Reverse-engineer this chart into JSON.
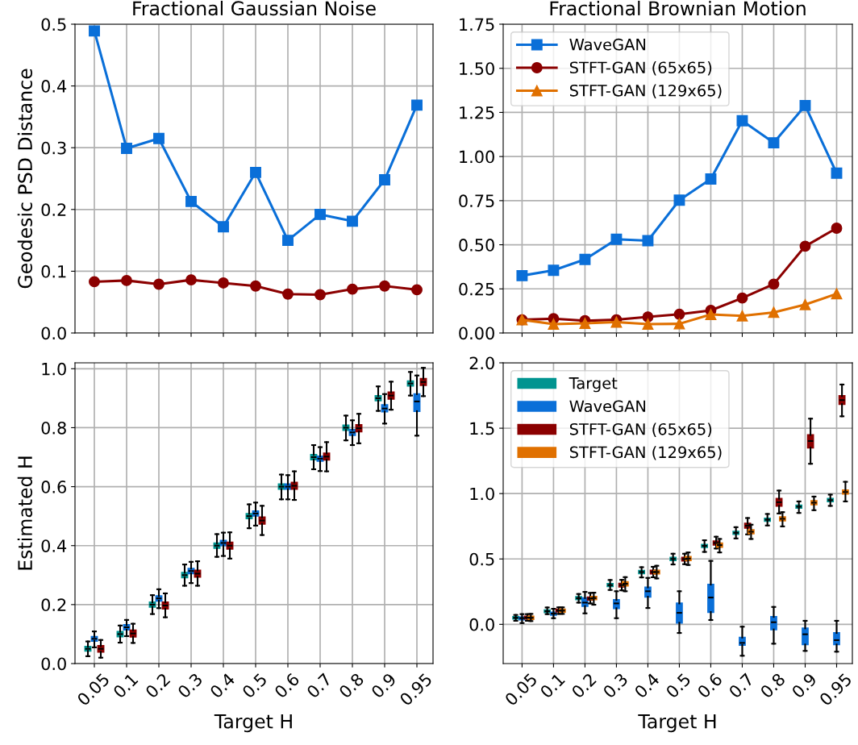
{
  "chart_data": [
    {
      "type": "line",
      "title": "Fractional Gaussian Noise",
      "ylabel": "Geodesic PSD Distance",
      "categories": [
        "0.05",
        "0.1",
        "0.2",
        "0.3",
        "0.4",
        "0.5",
        "0.6",
        "0.7",
        "0.8",
        "0.9",
        "0.95"
      ],
      "ylim": [
        0,
        0.5
      ],
      "yticks": [
        {
          "value": 0,
          "label": "0.0"
        },
        {
          "value": 0.1,
          "label": "0.1"
        },
        {
          "value": 0.2,
          "label": "0.2"
        },
        {
          "value": 0.3,
          "label": "0.3"
        },
        {
          "value": 0.4,
          "label": "0.4"
        },
        {
          "value": 0.5,
          "label": "0.5"
        }
      ],
      "grid": true,
      "tick_labels": "y",
      "series": [
        {
          "color": "#0a6fd8",
          "marker": "square",
          "values": [
            0.489,
            0.299,
            0.315,
            0.213,
            0.172,
            0.26,
            0.15,
            0.192,
            0.181,
            0.248,
            0.369
          ]
        },
        {
          "color": "#8b0000",
          "marker": "circle",
          "values": [
            0.083,
            0.085,
            0.079,
            0.086,
            0.081,
            0.076,
            0.063,
            0.062,
            0.071,
            0.076,
            0.07
          ]
        }
      ]
    },
    {
      "type": "line",
      "title": "Fractional Brownian Motion",
      "categories": [
        "0.05",
        "0.1",
        "0.2",
        "0.3",
        "0.4",
        "0.5",
        "0.6",
        "0.7",
        "0.8",
        "0.9",
        "0.95"
      ],
      "ylim": [
        0,
        1.75
      ],
      "yticks": [
        {
          "value": 0,
          "label": "0.00"
        },
        {
          "value": 0.25,
          "label": "0.25"
        },
        {
          "value": 0.5,
          "label": "0.50"
        },
        {
          "value": 0.75,
          "label": "0.75"
        },
        {
          "value": 1.0,
          "label": "1.00"
        },
        {
          "value": 1.25,
          "label": "1.25"
        },
        {
          "value": 1.5,
          "label": "1.50"
        },
        {
          "value": 1.75,
          "label": "1.75"
        }
      ],
      "grid": true,
      "tick_labels": "y",
      "legend": "top left",
      "series": [
        {
          "name": "WaveGAN",
          "color": "#0a6fd8",
          "marker": "square",
          "values": [
            0.325,
            0.355,
            0.417,
            0.531,
            0.523,
            0.753,
            0.873,
            1.203,
            1.078,
            1.289,
            0.906
          ]
        },
        {
          "name": "STFT-GAN (65x65)",
          "color": "#8b0000",
          "marker": "circle",
          "values": [
            0.075,
            0.081,
            0.07,
            0.075,
            0.091,
            0.106,
            0.128,
            0.198,
            0.277,
            0.492,
            0.594
          ]
        },
        {
          "name": "STFT-GAN (129x65)",
          "color": "#e07000",
          "marker": "triangle",
          "values": [
            0.075,
            0.05,
            0.055,
            0.062,
            0.05,
            0.052,
            0.105,
            0.097,
            0.117,
            0.161,
            0.222
          ]
        }
      ]
    },
    {
      "type": "box",
      "xlabel": "Target H",
      "ylabel": "Estimated H",
      "categories": [
        "0.05",
        "0.1",
        "0.2",
        "0.3",
        "0.4",
        "0.5",
        "0.6",
        "0.7",
        "0.8",
        "0.9",
        "0.95"
      ],
      "ylim": [
        0,
        1.02
      ],
      "yticks": [
        {
          "value": 0,
          "label": "0.0"
        },
        {
          "value": 0.2,
          "label": "0.2"
        },
        {
          "value": 0.4,
          "label": "0.4"
        },
        {
          "value": 0.6,
          "label": "0.6"
        },
        {
          "value": 0.8,
          "label": "0.8"
        },
        {
          "value": 1.0,
          "label": "1.0"
        }
      ],
      "grid": true,
      "series": [
        {
          "color": "#009490",
          "boxes": [
            {
              "low": 0.025,
              "q1": 0.043,
              "median": 0.05,
              "q3": 0.057,
              "high": 0.075
            },
            {
              "low": 0.071,
              "q1": 0.092,
              "median": 0.1,
              "q3": 0.108,
              "high": 0.129
            },
            {
              "low": 0.168,
              "q1": 0.192,
              "median": 0.2,
              "q3": 0.208,
              "high": 0.232
            },
            {
              "low": 0.264,
              "q1": 0.292,
              "median": 0.3,
              "q3": 0.308,
              "high": 0.336
            },
            {
              "low": 0.362,
              "q1": 0.392,
              "median": 0.4,
              "q3": 0.408,
              "high": 0.439
            },
            {
              "low": 0.459,
              "q1": 0.492,
              "median": 0.5,
              "q3": 0.508,
              "high": 0.54
            },
            {
              "low": 0.557,
              "q1": 0.592,
              "median": 0.6,
              "q3": 0.608,
              "high": 0.641
            },
            {
              "low": 0.659,
              "q1": 0.692,
              "median": 0.7,
              "q3": 0.708,
              "high": 0.741
            },
            {
              "low": 0.757,
              "q1": 0.792,
              "median": 0.8,
              "q3": 0.808,
              "high": 0.841
            },
            {
              "low": 0.857,
              "q1": 0.892,
              "median": 0.9,
              "q3": 0.908,
              "high": 0.94
            },
            {
              "low": 0.909,
              "q1": 0.942,
              "median": 0.95,
              "q3": 0.958,
              "high": 0.989
            }
          ]
        },
        {
          "color": "#0a6fd8",
          "boxes": [
            {
              "low": 0.055,
              "q1": 0.077,
              "median": 0.084,
              "q3": 0.091,
              "high": 0.109
            },
            {
              "low": 0.093,
              "q1": 0.115,
              "median": 0.123,
              "q3": 0.131,
              "high": 0.148
            },
            {
              "low": 0.188,
              "q1": 0.213,
              "median": 0.221,
              "q3": 0.229,
              "high": 0.252
            },
            {
              "low": 0.273,
              "q1": 0.306,
              "median": 0.314,
              "q3": 0.322,
              "high": 0.345
            },
            {
              "low": 0.365,
              "q1": 0.401,
              "median": 0.409,
              "q3": 0.417,
              "high": 0.444
            },
            {
              "low": 0.468,
              "q1": 0.501,
              "median": 0.509,
              "q3": 0.517,
              "high": 0.546
            },
            {
              "low": 0.557,
              "q1": 0.592,
              "median": 0.6,
              "q3": 0.608,
              "high": 0.639
            },
            {
              "low": 0.653,
              "q1": 0.687,
              "median": 0.695,
              "q3": 0.703,
              "high": 0.734
            },
            {
              "low": 0.741,
              "q1": 0.775,
              "median": 0.784,
              "q3": 0.793,
              "high": 0.825
            },
            {
              "low": 0.814,
              "q1": 0.855,
              "median": 0.865,
              "q3": 0.877,
              "high": 0.914
            },
            {
              "low": 0.773,
              "q1": 0.856,
              "median": 0.889,
              "q3": 0.914,
              "high": 0.977
            }
          ]
        },
        {
          "color": "#8b0000",
          "boxes": [
            {
              "low": 0.02,
              "q1": 0.04,
              "median": 0.05,
              "q3": 0.06,
              "high": 0.08
            },
            {
              "low": 0.07,
              "q1": 0.091,
              "median": 0.102,
              "q3": 0.113,
              "high": 0.135
            },
            {
              "low": 0.157,
              "q1": 0.186,
              "median": 0.197,
              "q3": 0.208,
              "high": 0.238
            },
            {
              "low": 0.264,
              "q1": 0.294,
              "median": 0.305,
              "q3": 0.316,
              "high": 0.347
            },
            {
              "low": 0.356,
              "q1": 0.389,
              "median": 0.4,
              "q3": 0.411,
              "high": 0.445
            },
            {
              "low": 0.436,
              "q1": 0.474,
              "median": 0.485,
              "q3": 0.496,
              "high": 0.535
            },
            {
              "low": 0.555,
              "q1": 0.592,
              "median": 0.603,
              "q3": 0.614,
              "high": 0.652
            },
            {
              "low": 0.652,
              "q1": 0.691,
              "median": 0.702,
              "q3": 0.713,
              "high": 0.751
            },
            {
              "low": 0.747,
              "q1": 0.787,
              "median": 0.798,
              "q3": 0.809,
              "high": 0.847
            },
            {
              "low": 0.861,
              "q1": 0.898,
              "median": 0.909,
              "q3": 0.92,
              "high": 0.956
            },
            {
              "low": 0.907,
              "q1": 0.944,
              "median": 0.955,
              "q3": 0.966,
              "high": 1.003
            }
          ]
        }
      ]
    },
    {
      "type": "box",
      "xlabel": "Target H",
      "categories": [
        "0.05",
        "0.1",
        "0.2",
        "0.3",
        "0.4",
        "0.5",
        "0.6",
        "0.7",
        "0.8",
        "0.9",
        "0.95"
      ],
      "ylim": [
        -0.3,
        2.0
      ],
      "yticks": [
        {
          "value": 0,
          "label": "0.0"
        },
        {
          "value": 0.5,
          "label": "0.5"
        },
        {
          "value": 1.0,
          "label": "1.0"
        },
        {
          "value": 1.5,
          "label": "1.5"
        },
        {
          "value": 2.0,
          "label": "2.0"
        }
      ],
      "grid": true,
      "legend": "top left",
      "series": [
        {
          "name": "Target",
          "color": "#009490",
          "boxes": [
            {
              "low": 0.027,
              "q1": 0.042,
              "median": 0.05,
              "q3": 0.058,
              "high": 0.072
            },
            {
              "low": 0.078,
              "q1": 0.092,
              "median": 0.1,
              "q3": 0.108,
              "high": 0.129
            },
            {
              "low": 0.166,
              "q1": 0.19,
              "median": 0.2,
              "q3": 0.21,
              "high": 0.232
            },
            {
              "low": 0.263,
              "q1": 0.29,
              "median": 0.3,
              "q3": 0.31,
              "high": 0.339
            },
            {
              "low": 0.359,
              "q1": 0.39,
              "median": 0.4,
              "q3": 0.41,
              "high": 0.437
            },
            {
              "low": 0.458,
              "q1": 0.49,
              "median": 0.5,
              "q3": 0.51,
              "high": 0.54
            },
            {
              "low": 0.554,
              "q1": 0.59,
              "median": 0.6,
              "q3": 0.61,
              "high": 0.643
            },
            {
              "low": 0.657,
              "q1": 0.69,
              "median": 0.7,
              "q3": 0.71,
              "high": 0.743
            },
            {
              "low": 0.756,
              "q1": 0.79,
              "median": 0.8,
              "q3": 0.81,
              "high": 0.844
            },
            {
              "low": 0.852,
              "q1": 0.89,
              "median": 0.9,
              "q3": 0.91,
              "high": 0.94
            },
            {
              "low": 0.906,
              "q1": 0.94,
              "median": 0.95,
              "q3": 0.96,
              "high": 0.992
            }
          ]
        },
        {
          "name": "WaveGAN",
          "color": "#0a6fd8",
          "boxes": [
            {
              "low": 0.01,
              "q1": 0.037,
              "median": 0.047,
              "q3": 0.055,
              "high": 0.078
            },
            {
              "low": 0.047,
              "q1": 0.072,
              "median": 0.082,
              "q3": 0.092,
              "high": 0.119
            },
            {
              "low": 0.084,
              "q1": 0.14,
              "median": 0.166,
              "q3": 0.201,
              "high": 0.248
            },
            {
              "low": 0.047,
              "q1": 0.123,
              "median": 0.16,
              "q3": 0.187,
              "high": 0.253
            },
            {
              "low": 0.125,
              "q1": 0.211,
              "median": 0.253,
              "q3": 0.283,
              "high": 0.355
            },
            {
              "low": -0.066,
              "q1": 0.012,
              "median": 0.088,
              "q3": 0.16,
              "high": 0.253
            },
            {
              "low": 0.033,
              "q1": 0.094,
              "median": 0.205,
              "q3": 0.304,
              "high": 0.485
            },
            {
              "low": -0.24,
              "q1": -0.158,
              "median": -0.142,
              "q3": -0.101,
              "high": -0.018
            },
            {
              "low": -0.148,
              "q1": -0.039,
              "median": 0.016,
              "q3": 0.057,
              "high": 0.133
            },
            {
              "low": -0.203,
              "q1": -0.154,
              "median": -0.076,
              "q3": -0.031,
              "high": 0.027
            },
            {
              "low": -0.209,
              "q1": -0.154,
              "median": -0.121,
              "q3": -0.066,
              "high": 0.027
            }
          ]
        },
        {
          "name": "STFT-GAN (65x65)",
          "color": "#8b0000",
          "boxes": [
            {
              "low": 0.027,
              "q1": 0.042,
              "median": 0.051,
              "q3": 0.06,
              "high": 0.078
            },
            {
              "low": 0.08,
              "q1": 0.096,
              "median": 0.105,
              "q3": 0.114,
              "high": 0.13
            },
            {
              "low": 0.16,
              "q1": 0.187,
              "median": 0.197,
              "q3": 0.207,
              "high": 0.24
            },
            {
              "low": 0.26,
              "q1": 0.288,
              "median": 0.3,
              "q3": 0.312,
              "high": 0.34
            },
            {
              "low": 0.36,
              "q1": 0.388,
              "median": 0.4,
              "q3": 0.412,
              "high": 0.44
            },
            {
              "low": 0.46,
              "q1": 0.487,
              "median": 0.499,
              "q3": 0.511,
              "high": 0.54
            },
            {
              "low": 0.58,
              "q1": 0.608,
              "median": 0.622,
              "q3": 0.636,
              "high": 0.67
            },
            {
              "low": 0.688,
              "q1": 0.737,
              "median": 0.754,
              "q3": 0.771,
              "high": 0.813
            },
            {
              "low": 0.848,
              "q1": 0.906,
              "median": 0.934,
              "q3": 0.961,
              "high": 1.023
            },
            {
              "low": 1.228,
              "q1": 1.351,
              "median": 1.402,
              "q3": 1.448,
              "high": 1.573
            },
            {
              "low": 1.591,
              "q1": 1.684,
              "median": 1.715,
              "q3": 1.747,
              "high": 1.834
            }
          ]
        },
        {
          "name": "STFT-GAN (129x65)",
          "color": "#e07000",
          "boxes": [
            {
              "low": 0.025,
              "q1": 0.04,
              "median": 0.05,
              "q3": 0.06,
              "high": 0.08
            },
            {
              "low": 0.08,
              "q1": 0.095,
              "median": 0.105,
              "q3": 0.115,
              "high": 0.13
            },
            {
              "low": 0.15,
              "q1": 0.19,
              "median": 0.201,
              "q3": 0.212,
              "high": 0.242
            },
            {
              "low": 0.253,
              "q1": 0.296,
              "median": 0.31,
              "q3": 0.324,
              "high": 0.361
            },
            {
              "low": 0.351,
              "q1": 0.388,
              "median": 0.4,
              "q3": 0.412,
              "high": 0.448
            },
            {
              "low": 0.454,
              "q1": 0.49,
              "median": 0.503,
              "q3": 0.516,
              "high": 0.55
            },
            {
              "low": 0.55,
              "q1": 0.592,
              "median": 0.606,
              "q3": 0.62,
              "high": 0.653
            },
            {
              "low": 0.653,
              "q1": 0.694,
              "median": 0.708,
              "q3": 0.722,
              "high": 0.762
            },
            {
              "low": 0.749,
              "q1": 0.793,
              "median": 0.807,
              "q3": 0.821,
              "high": 0.858
            },
            {
              "low": 0.873,
              "q1": 0.916,
              "median": 0.93,
              "q3": 0.944,
              "high": 0.977
            },
            {
              "low": 0.94,
              "q1": 0.998,
              "median": 1.012,
              "q3": 1.026,
              "high": 1.09
            }
          ]
        }
      ]
    }
  ]
}
